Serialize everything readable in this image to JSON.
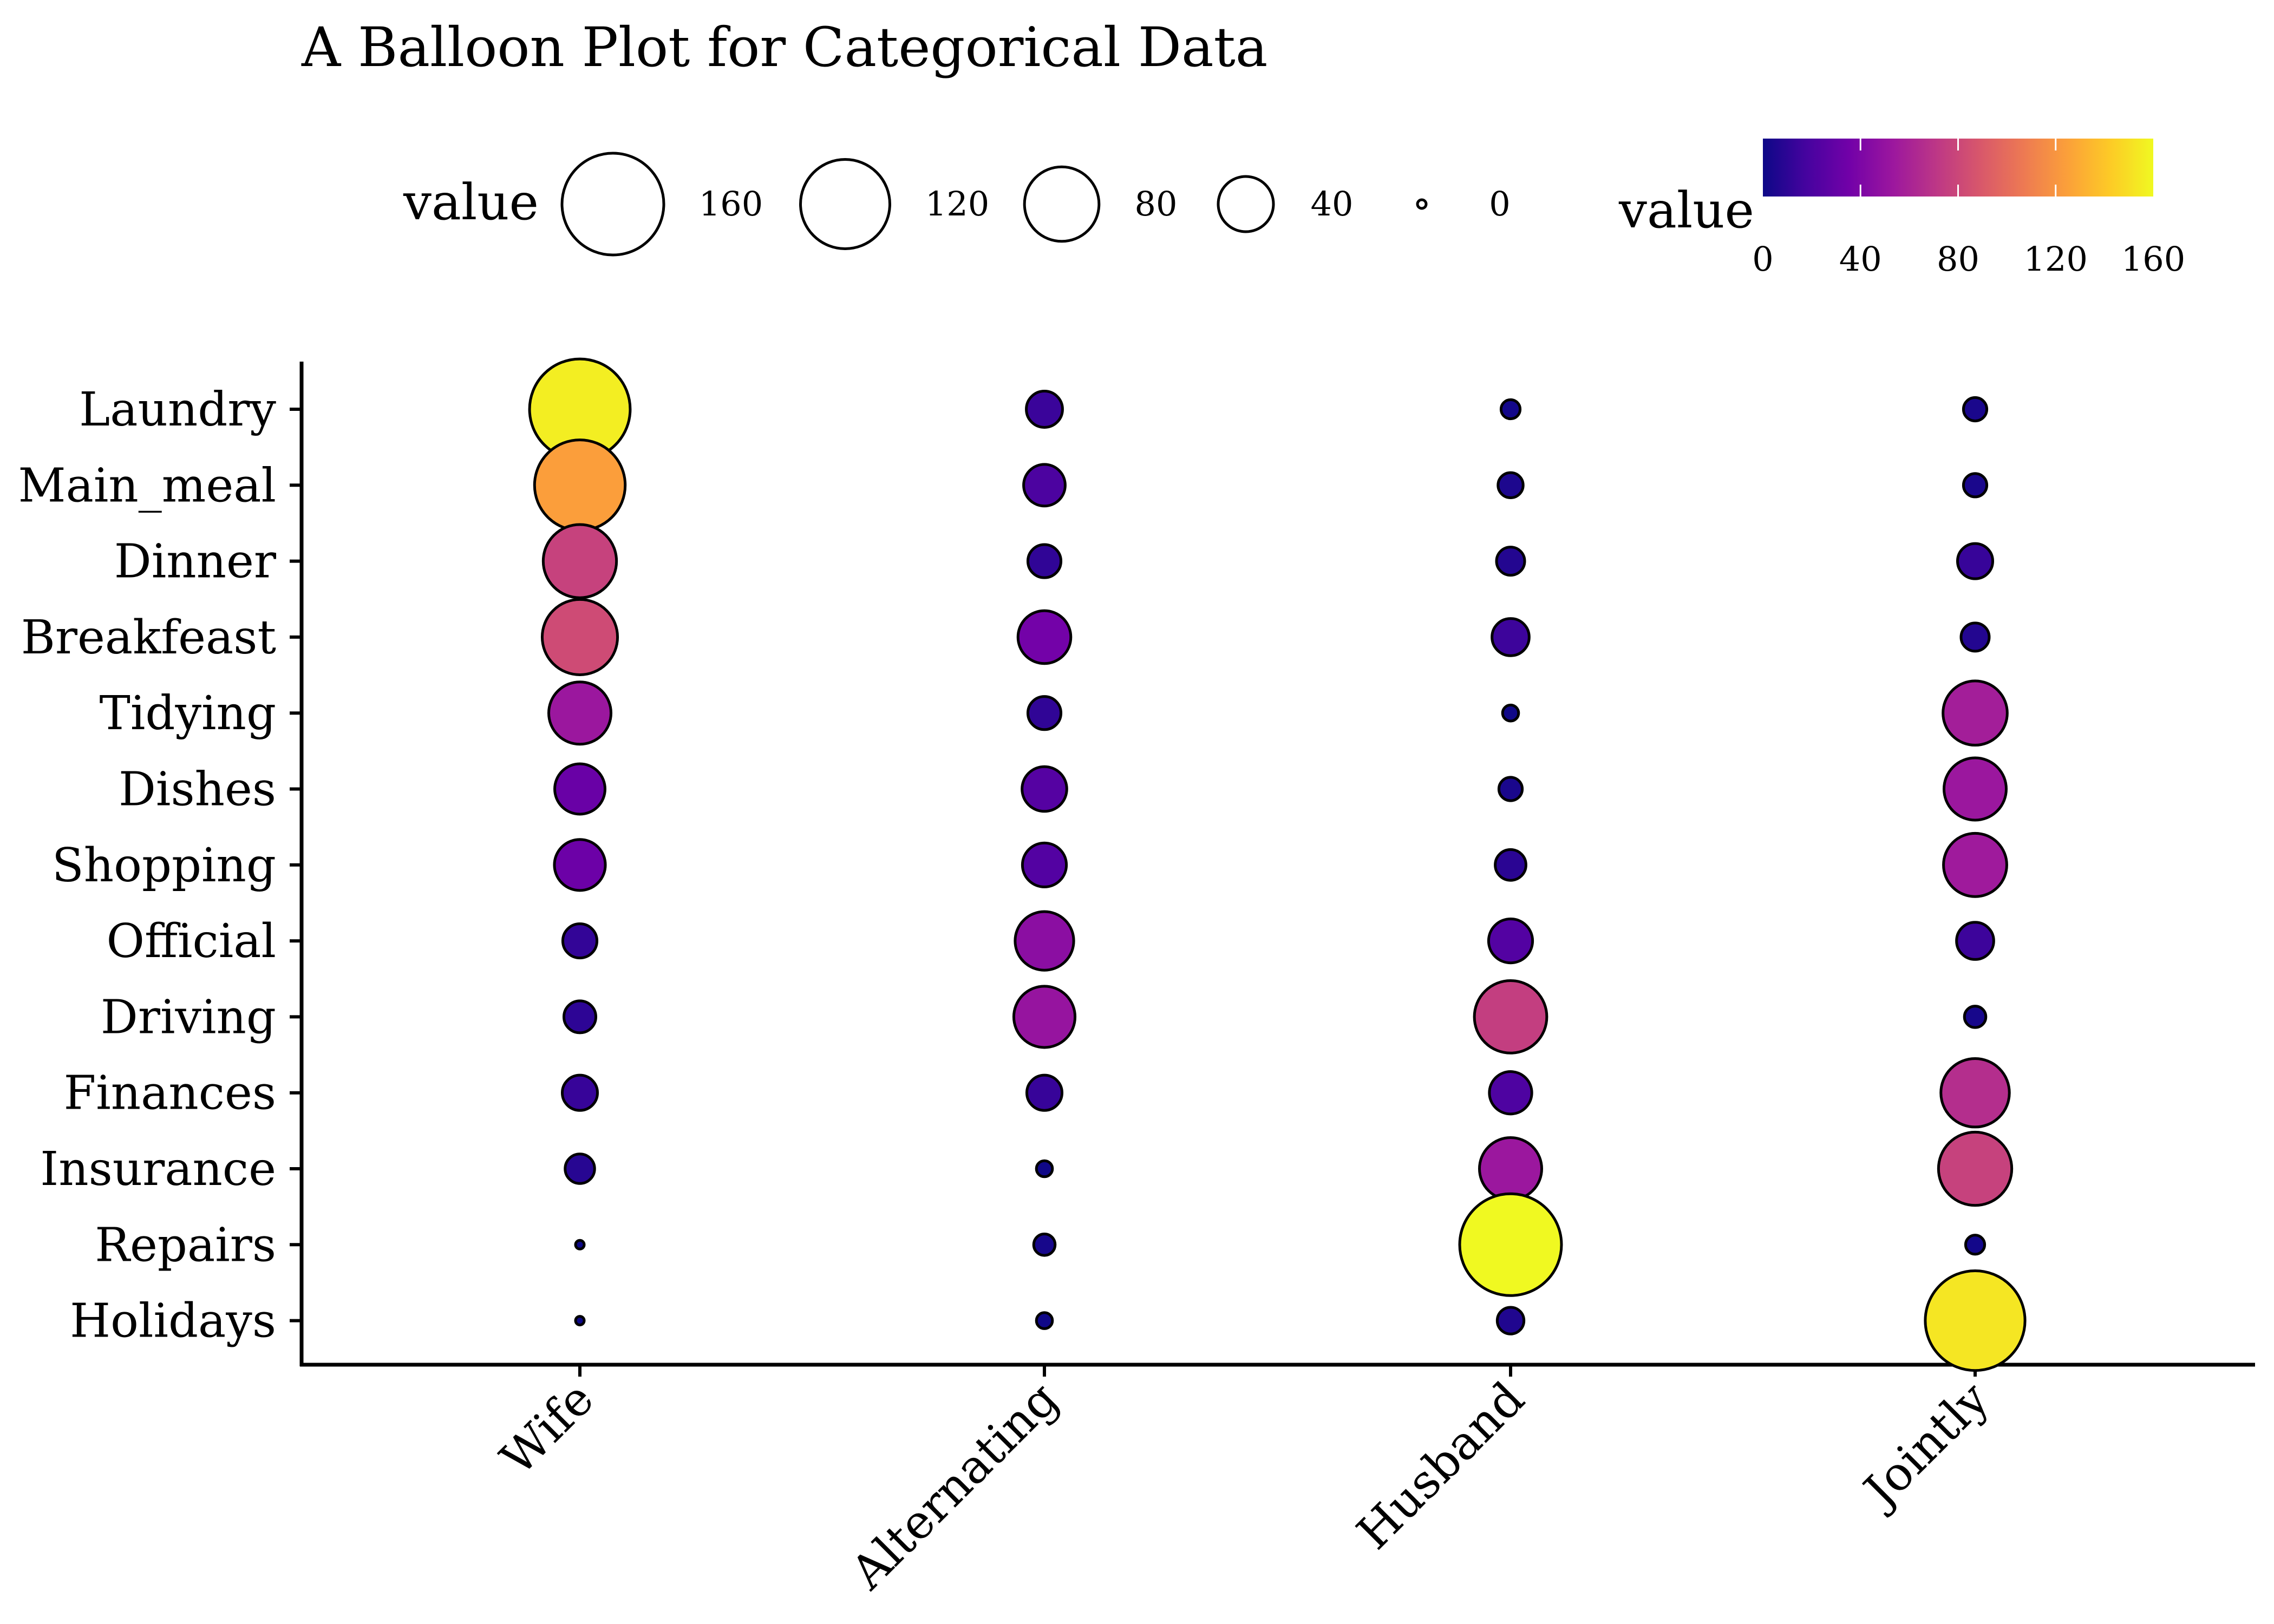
{
  "chart_data": {
    "type": "scatter",
    "subtype": "balloon",
    "title": "A Balloon Plot for Categorical Data",
    "xlabel": "",
    "ylabel": "",
    "x_categories": [
      "Wife",
      "Alternating",
      "Husband",
      "Jointly"
    ],
    "y_categories": [
      "Laundry",
      "Main_meal",
      "Dinner",
      "Breakfeast",
      "Tidying",
      "Dishes",
      "Shopping",
      "Official",
      "Driving",
      "Finances",
      "Insurance",
      "Repairs",
      "Holidays"
    ],
    "values": [
      [
        156,
        14,
        2,
        4
      ],
      [
        124,
        20,
        5,
        4
      ],
      [
        77,
        11,
        7,
        13
      ],
      [
        82,
        36,
        15,
        7
      ],
      [
        53,
        11,
        1,
        57
      ],
      [
        32,
        24,
        4,
        53
      ],
      [
        33,
        23,
        9,
        55
      ],
      [
        12,
        46,
        23,
        15
      ],
      [
        10,
        51,
        75,
        3
      ],
      [
        13,
        13,
        21,
        66
      ],
      [
        8,
        1,
        53,
        77
      ],
      [
        0,
        3,
        160,
        2
      ],
      [
        0,
        1,
        6,
        153
      ]
    ],
    "value_range": [
      0,
      160
    ],
    "grid": false,
    "size_legend": {
      "title": "value",
      "breaks": [
        160,
        120,
        80,
        40,
        0
      ],
      "labels": [
        "160",
        "120",
        "80",
        "40",
        "0"
      ],
      "placement": "top"
    },
    "color_legend": {
      "title": "value",
      "palette": "plasma",
      "stops": [
        "#0d0887",
        "#46039f",
        "#7201a8",
        "#9c179e",
        "#bd3786",
        "#d8576b",
        "#ed7953",
        "#fb9f3a",
        "#fdca26",
        "#f0f921"
      ],
      "breaks": [
        0,
        40,
        80,
        120,
        160
      ],
      "labels": [
        "0",
        "40",
        "80",
        "120",
        "160"
      ],
      "placement": "top-right"
    },
    "point_outline_color": "#000000"
  }
}
